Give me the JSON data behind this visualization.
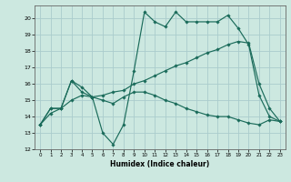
{
  "xlabel": "Humidex (Indice chaleur)",
  "bg_color": "#cce8e0",
  "grid_color": "#aacccc",
  "line_color": "#1a6b5a",
  "line1": {
    "x": [
      0,
      1,
      2,
      3,
      4,
      5,
      6,
      7,
      8,
      9,
      10,
      11,
      12,
      13,
      14,
      15,
      16,
      17,
      18,
      19,
      20,
      21,
      22,
      23
    ],
    "y": [
      13.5,
      14.5,
      14.5,
      16.2,
      15.8,
      15.2,
      13.0,
      12.3,
      13.5,
      16.8,
      20.4,
      19.8,
      19.5,
      20.4,
      19.8,
      19.8,
      19.8,
      19.8,
      20.2,
      19.4,
      18.4,
      15.3,
      14.0,
      13.7
    ]
  },
  "line2": {
    "x": [
      0,
      1,
      2,
      3,
      4,
      5,
      6,
      7,
      8,
      9,
      10,
      11,
      12,
      13,
      14,
      15,
      16,
      17,
      18,
      19,
      20,
      21,
      22,
      23
    ],
    "y": [
      13.5,
      14.2,
      14.5,
      15.0,
      15.3,
      15.2,
      15.3,
      15.5,
      15.6,
      16.0,
      16.2,
      16.5,
      16.8,
      17.1,
      17.3,
      17.6,
      17.9,
      18.1,
      18.4,
      18.6,
      18.5,
      16.0,
      14.5,
      13.7
    ]
  },
  "line3": {
    "x": [
      0,
      1,
      2,
      3,
      4,
      5,
      6,
      7,
      8,
      9,
      10,
      11,
      12,
      13,
      14,
      15,
      16,
      17,
      18,
      19,
      20,
      21,
      22,
      23
    ],
    "y": [
      13.5,
      14.5,
      14.5,
      16.2,
      15.5,
      15.2,
      15.0,
      14.8,
      15.2,
      15.5,
      15.5,
      15.3,
      15.0,
      14.8,
      14.5,
      14.3,
      14.1,
      14.0,
      14.0,
      13.8,
      13.6,
      13.5,
      13.8,
      13.7
    ]
  },
  "xlim": [
    -0.5,
    23.5
  ],
  "ylim": [
    12,
    20.8
  ],
  "yticks": [
    12,
    13,
    14,
    15,
    16,
    17,
    18,
    19,
    20
  ],
  "xticks": [
    0,
    1,
    2,
    3,
    4,
    5,
    6,
    7,
    8,
    9,
    10,
    11,
    12,
    13,
    14,
    15,
    16,
    17,
    18,
    19,
    20,
    21,
    22,
    23
  ]
}
